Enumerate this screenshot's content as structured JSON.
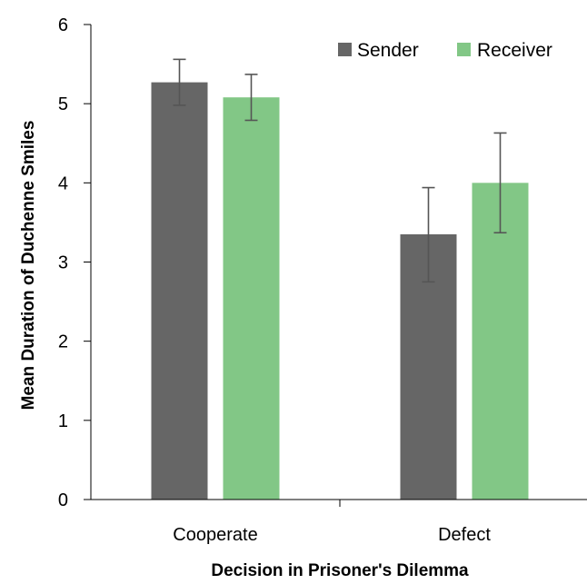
{
  "chart_data": {
    "type": "bar",
    "xlabel": "Decision in Prisoner's Dilemma",
    "ylabel": "Mean Duration of Duchenne Smiles",
    "ylim": [
      0,
      6
    ],
    "yticks": [
      0,
      1,
      2,
      3,
      4,
      5,
      6
    ],
    "categories": [
      "Cooperate",
      "Defect"
    ],
    "legend_position": "top-right",
    "grid": false,
    "series": [
      {
        "name": "Sender",
        "color": "#666666",
        "values": [
          5.27,
          3.35
        ],
        "error_low": [
          4.98,
          2.75
        ],
        "error_high": [
          5.56,
          3.94
        ]
      },
      {
        "name": "Receiver",
        "color": "#82c786",
        "values": [
          5.08,
          4.0
        ],
        "error_low": [
          4.79,
          3.37
        ],
        "error_high": [
          5.37,
          4.63
        ]
      }
    ]
  }
}
